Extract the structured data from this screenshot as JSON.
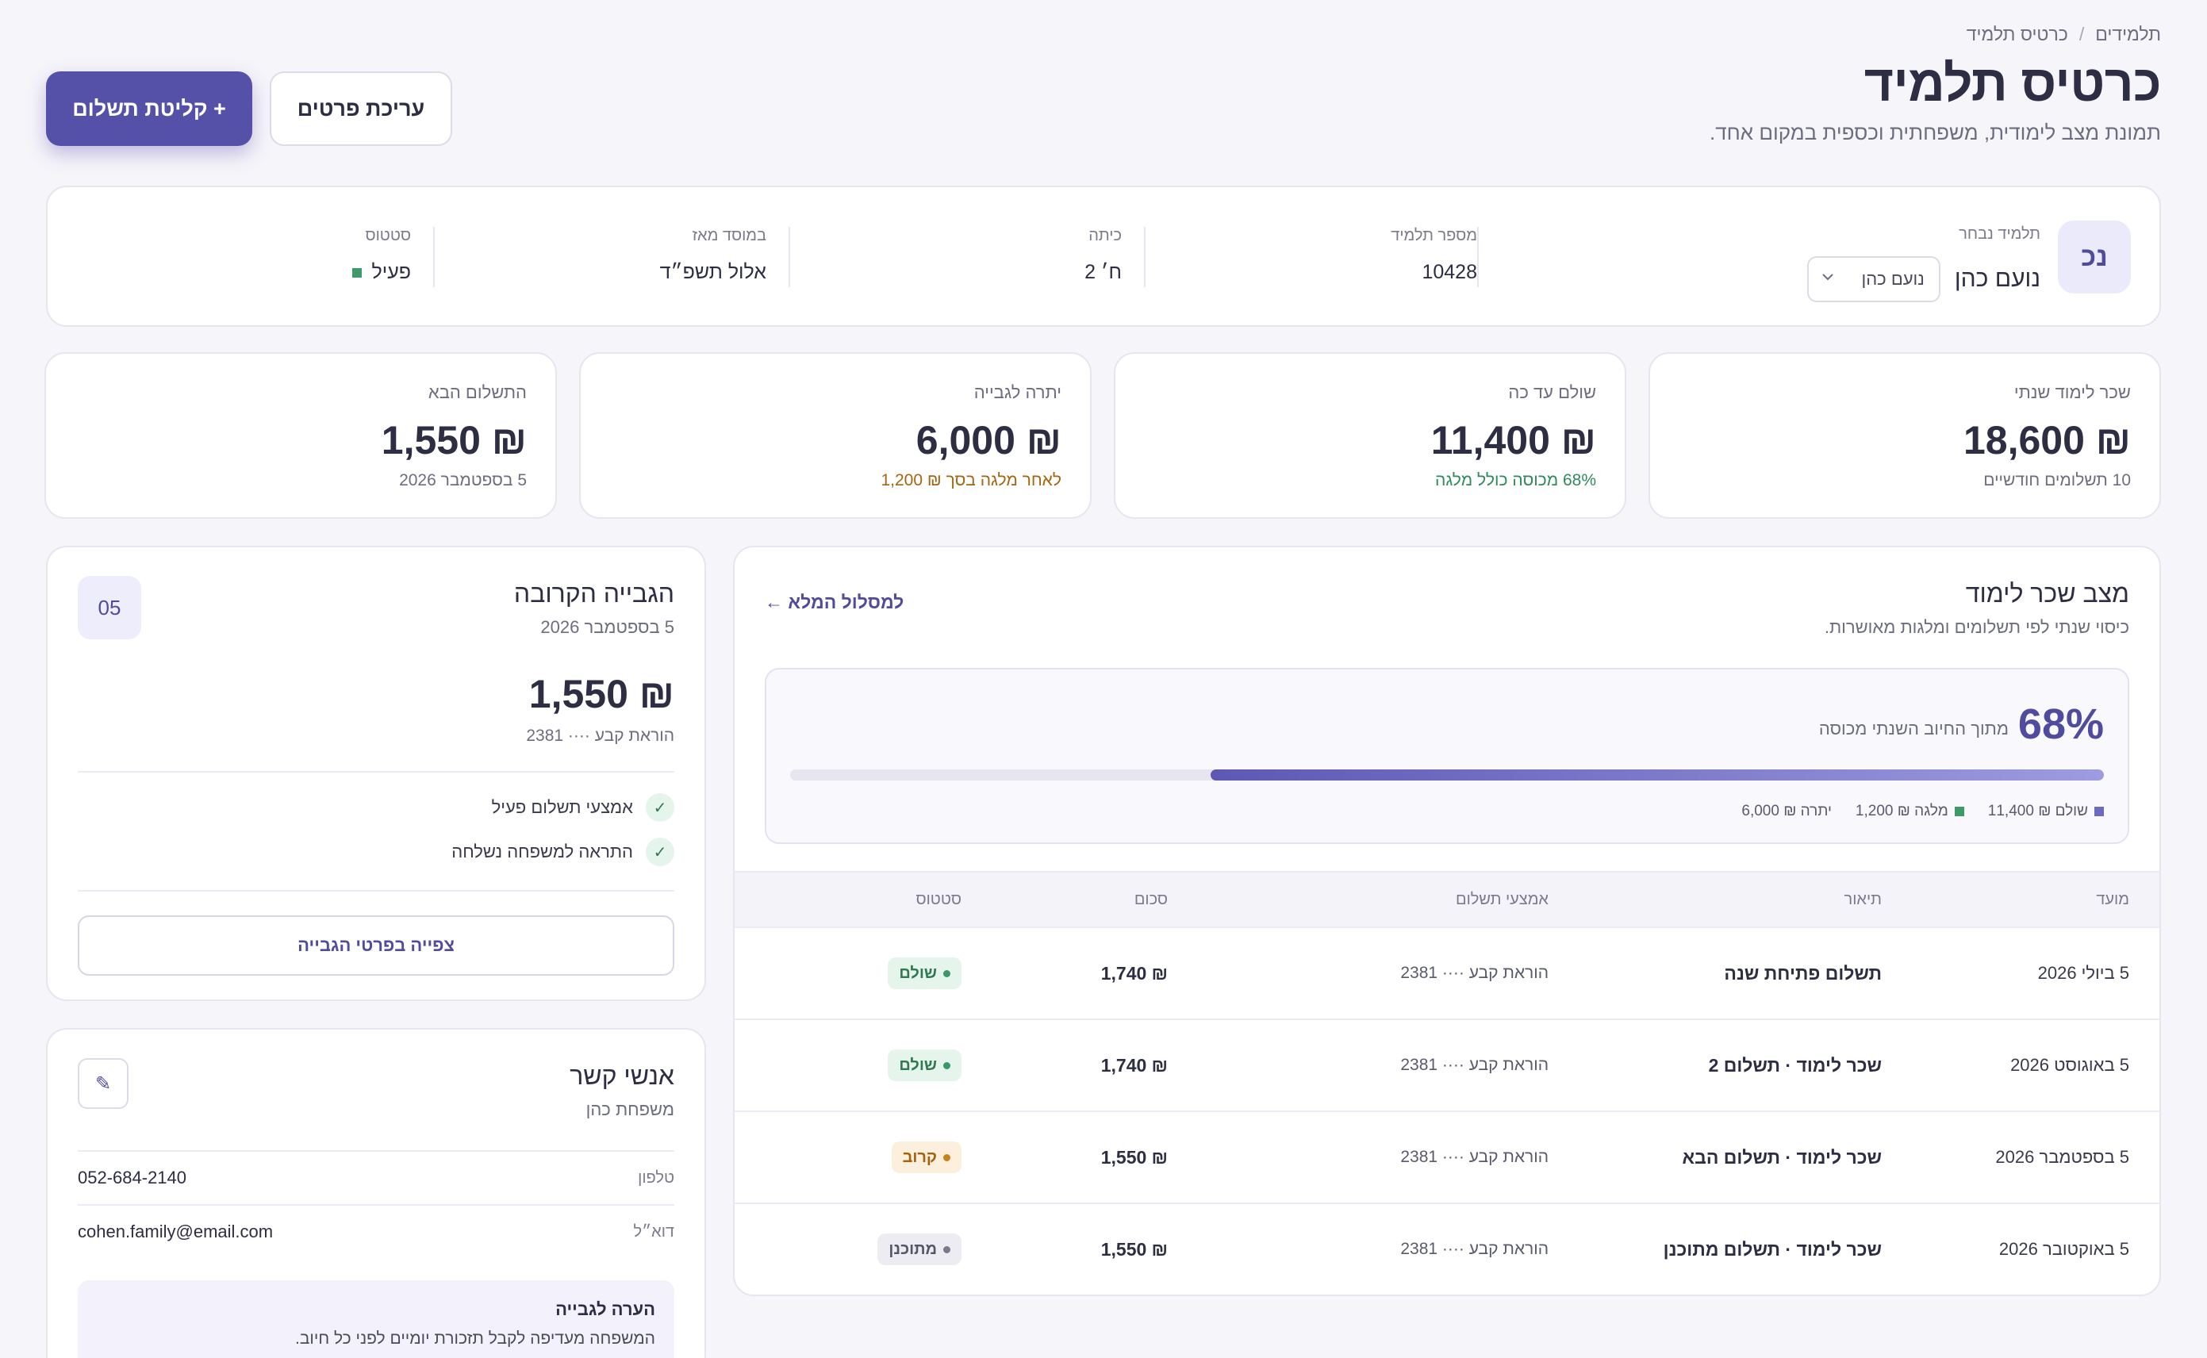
{
  "breadcrumb": {
    "parent": "תלמידים",
    "separator": "/",
    "current": "כרטיס תלמיד"
  },
  "header": {
    "title": "כרטיס תלמיד",
    "subtitle": "תמונת מצב לימודית, משפחתית וכספית במקום אחד.",
    "primary_button": "+ קליטת תשלום",
    "secondary_button": "עריכת פרטים"
  },
  "student": {
    "avatar_initials": "נכ",
    "selected_label": "תלמיד נבחר",
    "name": "נועם כהן",
    "select_value": "נועם כהן",
    "fields": [
      {
        "label": "מספר תלמיד",
        "value": "10428"
      },
      {
        "label": "כיתה",
        "value": "ח׳ 2"
      },
      {
        "label": "במוסד מאז",
        "value": "אלול תשפ״ד"
      },
      {
        "label": "סטטוס",
        "value": "פעיל"
      }
    ]
  },
  "stats": {
    "annual_fee": {
      "label": "שכר לימוד שנתי",
      "value": "₪ 18,600",
      "sub": "10 תשלומים חודשיים"
    },
    "paid": {
      "label": "שולם עד כה",
      "value": "₪ 11,400",
      "sub": "68% מכוסה כולל מלגה"
    },
    "balance": {
      "label": "יתרה לגבייה",
      "value": "₪ 6,000",
      "sub": "לאחר מלגה בסך ₪ 1,200"
    },
    "next_payment": {
      "label": "התשלום הבא",
      "value": "₪ 1,550",
      "sub": "5 בספטמבר 2026"
    }
  },
  "tuition": {
    "title": "מצב שכר לימוד",
    "subtitle": "כיסוי שנתי לפי תשלומים ומלגות מאושרות.",
    "link": "למסלול המלא ←",
    "percent_text": "68%",
    "percent_label": "מתוך החיוב השנתי מכוסה",
    "coverage_fraction": 0.68,
    "legend": [
      {
        "label": "שולם ₪ 11,400",
        "color": "#6e6ac0"
      },
      {
        "label": "מלגה ₪ 1,200",
        "color": "#3f9a6a"
      },
      {
        "label": "יתרה ₪ 6,000",
        "color": ""
      }
    ],
    "table": {
      "headers": [
        "מועד",
        "תיאור",
        "אמצעי תשלום",
        "סכום",
        "סטטוס"
      ],
      "rows": [
        {
          "date": "5 ביולי 2026",
          "desc": "תשלום פתיחת שנה",
          "method": "הוראת קבע ···· 2381",
          "amount": "₪ 1,740",
          "status": "שולם"
        },
        {
          "date": "5 באוגוסט 2026",
          "desc": "שכר לימוד · תשלום 2",
          "method": "הוראת קבע ···· 2381",
          "amount": "₪ 1,740",
          "status": "שולם"
        },
        {
          "date": "5 בספטמבר 2026",
          "desc": "שכר לימוד · תשלום הבא",
          "method": "הוראת קבע ···· 2381",
          "amount": "₪ 1,550",
          "status": "קרוב"
        },
        {
          "date": "5 באוקטובר 2026",
          "desc": "שכר לימוד · תשלום מתוכנן",
          "method": "הוראת קבע ···· 2381",
          "amount": "₪ 1,550",
          "status": "מתוכנן"
        }
      ]
    }
  },
  "collection": {
    "title": "הגבייה הקרובה",
    "date": "5 בספטמבר 2026",
    "day": "05",
    "amount": "₪ 1,550",
    "method": "הוראת קבע ···· 2381",
    "checks": [
      "אמצעי תשלום פעיל",
      "התראה למשפחה נשלחה"
    ],
    "button": "צפייה בפרטי הגבייה"
  },
  "contacts": {
    "title": "אנשי קשר",
    "subtitle": "משפחת כהן",
    "phone_label": "טלפון",
    "phone": "052-684-2140",
    "email_label": "דוא״ל",
    "email": "cohen.family@email.com",
    "note_title": "הערה לגבייה",
    "note_text": "המשפחה מעדיפה לקבל תזכורת יומיים לפני כל חיוב."
  },
  "icons": {
    "chevron": "chevron-down-icon",
    "check": "check-icon",
    "edit": "pencil-icon"
  }
}
